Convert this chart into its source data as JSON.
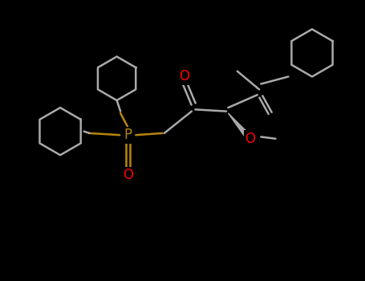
{
  "background": "#000000",
  "bond_color": "#aaaaaa",
  "p_color": "#b8860b",
  "o_color": "#ff0000",
  "text_color": "#aaaaaa",
  "figsize": [
    4.55,
    3.5
  ],
  "dpi": 100,
  "xlim": [
    0,
    10
  ],
  "ylim": [
    0,
    7.7
  ]
}
